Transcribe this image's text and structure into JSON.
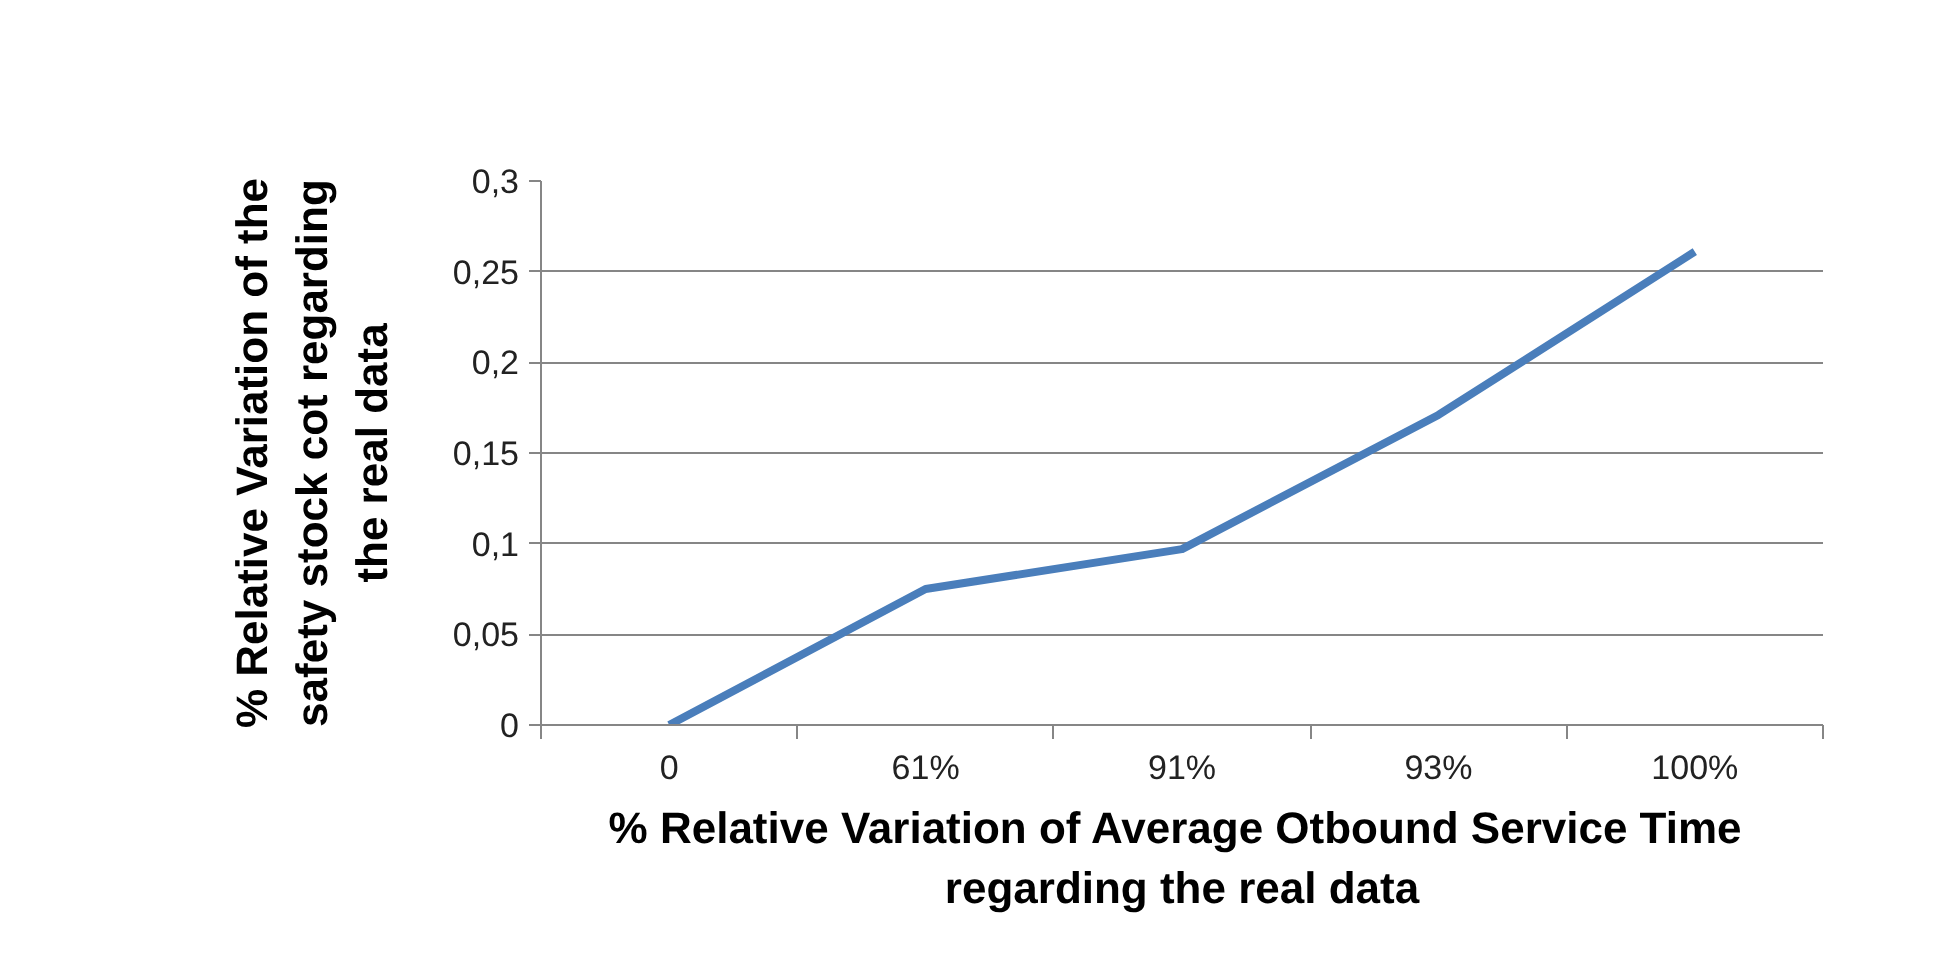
{
  "chart_data": {
    "type": "line",
    "xlabel": "% Relative Variation of  Average Otbound Service Time\nregarding the real data",
    "ylabel": "% Relative Variation of the\nsafety stock cot regarding\nthe real data",
    "categories": [
      "0",
      "61%",
      "91%",
      "93%",
      "100%"
    ],
    "series": [
      {
        "color": "#4a7ebb",
        "values": [
          0,
          0.075,
          0.097,
          0.171,
          0.261
        ]
      }
    ],
    "ylim": [
      0,
      0.3
    ],
    "yticks": [
      0,
      {
        "value": 0.05,
        "label": "0,05"
      },
      {
        "value": 0.1,
        "label": "0,1"
      },
      {
        "value": 0.15,
        "label": "0,15"
      },
      {
        "value": 0.2,
        "label": "0,2"
      },
      {
        "value": 0.25,
        "label": "0,25"
      },
      {
        "value": 0.3,
        "label": "0,3"
      }
    ],
    "grid": "y",
    "marker": "none",
    "line_style": "solid"
  }
}
